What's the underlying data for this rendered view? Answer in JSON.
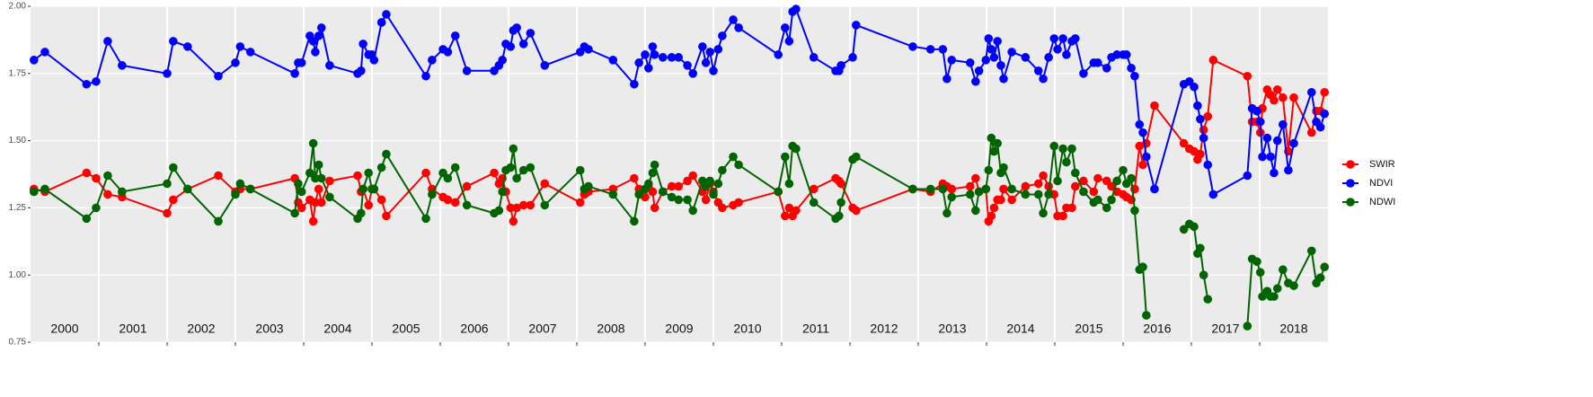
{
  "chart_data": {
    "type": "line",
    "x": [
      2000.05,
      2000.21,
      2000.82,
      2000.96,
      2001.13,
      2001.34,
      2002.0,
      2002.09,
      2002.3,
      2002.75,
      2003.0,
      2003.07,
      2003.22,
      2003.87,
      2003.92,
      2003.97,
      2004.09,
      2004.14,
      2004.17,
      2004.22,
      2004.26,
      2004.38,
      2004.79,
      2004.84,
      2004.87,
      2004.95,
      2005.0,
      2005.03,
      2005.14,
      2005.21,
      2005.79,
      2005.88,
      2006.04,
      2006.11,
      2006.22,
      2006.39,
      2006.79,
      2006.86,
      2006.91,
      2006.96,
      2007.03,
      2007.07,
      2007.12,
      2007.22,
      2007.32,
      2007.53,
      2008.05,
      2008.11,
      2008.17,
      2008.53,
      2008.84,
      2008.91,
      2009.0,
      2009.05,
      2009.11,
      2009.14,
      2009.26,
      2009.39,
      2009.49,
      2009.62,
      2009.7,
      2009.84,
      2009.89,
      2009.95,
      2010.0,
      2010.07,
      2010.13,
      2010.29,
      2010.37,
      2010.95,
      2011.05,
      2011.11,
      2011.16,
      2011.21,
      2011.47,
      2011.79,
      2011.84,
      2011.87,
      2012.04,
      2012.09,
      2012.92,
      2013.18,
      2013.36,
      2013.42,
      2013.49,
      2013.76,
      2013.84,
      2013.89,
      2013.99,
      2014.03,
      2014.07,
      2014.11,
      2014.16,
      2014.21,
      2014.25,
      2014.37,
      2014.57,
      2014.76,
      2014.83,
      2014.91,
      2014.99,
      2015.04,
      2015.12,
      2015.17,
      2015.25,
      2015.3,
      2015.42,
      2015.57,
      2015.63,
      2015.76,
      2015.83,
      2015.91,
      2016.0,
      2016.05,
      2016.12,
      2016.17,
      2016.24,
      2016.29,
      2016.34,
      2016.46,
      2016.89,
      2016.97,
      2017.04,
      2017.09,
      2017.13,
      2017.18,
      2017.24,
      2017.32,
      2017.82,
      2017.89,
      2017.96,
      2018.01,
      2018.04,
      2018.11,
      2018.16,
      2018.21,
      2018.26,
      2018.34,
      2018.42,
      2018.5,
      2018.76,
      2018.83,
      2018.89,
      2018.95
    ],
    "series": [
      {
        "name": "SWIR",
        "color": "#ff0000",
        "values": [
          1.32,
          1.31,
          1.38,
          1.36,
          1.3,
          1.29,
          1.23,
          1.28,
          1.32,
          1.37,
          1.31,
          1.32,
          1.32,
          1.36,
          1.27,
          1.25,
          1.28,
          1.2,
          1.27,
          1.32,
          1.27,
          1.35,
          1.37,
          1.31,
          1.32,
          1.26,
          1.32,
          1.32,
          1.28,
          1.22,
          1.38,
          1.32,
          1.29,
          1.28,
          1.27,
          1.33,
          1.38,
          1.34,
          1.36,
          1.31,
          1.25,
          1.2,
          1.25,
          1.26,
          1.26,
          1.34,
          1.27,
          1.3,
          1.31,
          1.32,
          1.36,
          1.32,
          1.29,
          1.33,
          1.31,
          1.25,
          1.31,
          1.33,
          1.33,
          1.35,
          1.37,
          1.31,
          1.28,
          1.34,
          1.31,
          1.27,
          1.25,
          1.26,
          1.27,
          1.31,
          1.22,
          1.25,
          1.22,
          1.24,
          1.32,
          1.36,
          1.35,
          1.34,
          1.25,
          1.24,
          1.32,
          1.31,
          1.34,
          1.33,
          1.32,
          1.33,
          1.36,
          1.31,
          1.32,
          1.2,
          1.22,
          1.25,
          1.28,
          1.28,
          1.32,
          1.28,
          1.33,
          1.34,
          1.37,
          1.33,
          1.3,
          1.22,
          1.22,
          1.25,
          1.25,
          1.33,
          1.35,
          1.31,
          1.36,
          1.35,
          1.33,
          1.31,
          1.3,
          1.29,
          1.28,
          1.32,
          1.48,
          1.41,
          1.49,
          1.63,
          1.49,
          1.47,
          1.46,
          1.43,
          1.45,
          1.54,
          1.59,
          1.8,
          1.74,
          1.57,
          1.57,
          1.53,
          1.62,
          1.69,
          1.67,
          1.65,
          1.69,
          1.66,
          1.46,
          1.66,
          1.53,
          1.61,
          1.61,
          1.68
        ]
      },
      {
        "name": "NDVI",
        "color": "#0000ff",
        "values": [
          1.8,
          1.83,
          1.71,
          1.72,
          1.87,
          1.78,
          1.75,
          1.87,
          1.85,
          1.74,
          1.79,
          1.85,
          1.83,
          1.75,
          1.79,
          1.79,
          1.89,
          1.87,
          1.83,
          1.89,
          1.92,
          1.78,
          1.75,
          1.76,
          1.86,
          1.82,
          1.82,
          1.8,
          1.94,
          1.97,
          1.74,
          1.8,
          1.84,
          1.83,
          1.89,
          1.76,
          1.76,
          1.78,
          1.8,
          1.86,
          1.85,
          1.91,
          1.92,
          1.86,
          1.9,
          1.78,
          1.83,
          1.85,
          1.84,
          1.8,
          1.71,
          1.79,
          1.82,
          1.77,
          1.85,
          1.82,
          1.81,
          1.81,
          1.81,
          1.78,
          1.75,
          1.85,
          1.79,
          1.83,
          1.76,
          1.84,
          1.89,
          1.95,
          1.92,
          1.82,
          1.92,
          1.87,
          1.98,
          1.99,
          1.81,
          1.76,
          1.76,
          1.78,
          1.81,
          1.93,
          1.85,
          1.84,
          1.84,
          1.73,
          1.8,
          1.79,
          1.72,
          1.76,
          1.8,
          1.88,
          1.84,
          1.81,
          1.87,
          1.78,
          1.73,
          1.83,
          1.81,
          1.76,
          1.73,
          1.81,
          1.88,
          1.84,
          1.88,
          1.82,
          1.87,
          1.88,
          1.75,
          1.79,
          1.79,
          1.77,
          1.81,
          1.82,
          1.82,
          1.82,
          1.77,
          1.74,
          1.56,
          1.53,
          1.44,
          1.32,
          1.71,
          1.72,
          1.7,
          1.63,
          1.58,
          1.51,
          1.41,
          1.3,
          1.37,
          1.62,
          1.61,
          1.57,
          1.44,
          1.51,
          1.44,
          1.38,
          1.5,
          1.56,
          1.39,
          1.49,
          1.68,
          1.57,
          1.55,
          1.6
        ]
      },
      {
        "name": "NDWI",
        "color": "#006400",
        "values": [
          1.31,
          1.32,
          1.21,
          1.25,
          1.37,
          1.31,
          1.34,
          1.4,
          1.32,
          1.2,
          1.3,
          1.34,
          1.32,
          1.23,
          1.34,
          1.31,
          1.38,
          1.49,
          1.36,
          1.41,
          1.36,
          1.29,
          1.21,
          1.23,
          1.32,
          1.38,
          1.32,
          1.32,
          1.4,
          1.45,
          1.21,
          1.3,
          1.38,
          1.36,
          1.4,
          1.26,
          1.23,
          1.24,
          1.31,
          1.39,
          1.4,
          1.47,
          1.36,
          1.39,
          1.4,
          1.26,
          1.39,
          1.32,
          1.33,
          1.3,
          1.2,
          1.3,
          1.32,
          1.34,
          1.38,
          1.41,
          1.31,
          1.29,
          1.28,
          1.28,
          1.24,
          1.35,
          1.33,
          1.35,
          1.3,
          1.34,
          1.39,
          1.44,
          1.41,
          1.31,
          1.44,
          1.34,
          1.48,
          1.47,
          1.27,
          1.21,
          1.22,
          1.27,
          1.43,
          1.44,
          1.32,
          1.32,
          1.32,
          1.23,
          1.29,
          1.3,
          1.24,
          1.31,
          1.32,
          1.39,
          1.51,
          1.46,
          1.49,
          1.38,
          1.4,
          1.32,
          1.3,
          1.3,
          1.23,
          1.3,
          1.48,
          1.35,
          1.47,
          1.42,
          1.47,
          1.38,
          1.31,
          1.27,
          1.28,
          1.25,
          1.28,
          1.35,
          1.39,
          1.34,
          1.36,
          1.24,
          1.02,
          1.03,
          0.85,
          null,
          1.17,
          1.19,
          1.18,
          1.08,
          1.1,
          1.0,
          0.91,
          null,
          0.81,
          1.06,
          1.05,
          1.01,
          0.92,
          0.94,
          0.92,
          0.92,
          0.95,
          1.02,
          0.97,
          0.96,
          1.09,
          0.97,
          0.99,
          1.03
        ]
      }
    ],
    "xlim": [
      2000,
      2019
    ],
    "xticks": [
      2001,
      2002,
      2003,
      2004,
      2005,
      2006,
      2007,
      2008,
      2009,
      2010,
      2011,
      2012,
      2013,
      2014,
      2015,
      2016,
      2017,
      2018
    ],
    "ylim": [
      0.75,
      2.0
    ],
    "yticks": [
      0.75,
      {
        "value": 1.0,
        "label": "1.00"
      },
      1.25,
      {
        "value": 1.5,
        "label": "1.50"
      },
      1.75,
      {
        "value": 2.0,
        "label": "2.00"
      }
    ],
    "annotations": [
      {
        "label": "2000",
        "x": 2000.5
      },
      {
        "label": "2001",
        "x": 2001.5
      },
      {
        "label": "2002",
        "x": 2002.5
      },
      {
        "label": "2003",
        "x": 2003.5
      },
      {
        "label": "2004",
        "x": 2004.5
      },
      {
        "label": "2005",
        "x": 2005.5
      },
      {
        "label": "2006",
        "x": 2006.5
      },
      {
        "label": "2007",
        "x": 2007.5
      },
      {
        "label": "2008",
        "x": 2008.5
      },
      {
        "label": "2009",
        "x": 2009.5
      },
      {
        "label": "2010",
        "x": 2010.5
      },
      {
        "label": "2011",
        "x": 2011.5
      },
      {
        "label": "2012",
        "x": 2012.5
      },
      {
        "label": "2013",
        "x": 2013.5
      },
      {
        "label": "2014",
        "x": 2014.5
      },
      {
        "label": "2015",
        "x": 2015.5
      },
      {
        "label": "2016",
        "x": 2016.5
      },
      {
        "label": "2017",
        "x": 2017.5
      },
      {
        "label": "2018",
        "x": 2018.5
      }
    ],
    "grid": true,
    "legend": "right"
  }
}
